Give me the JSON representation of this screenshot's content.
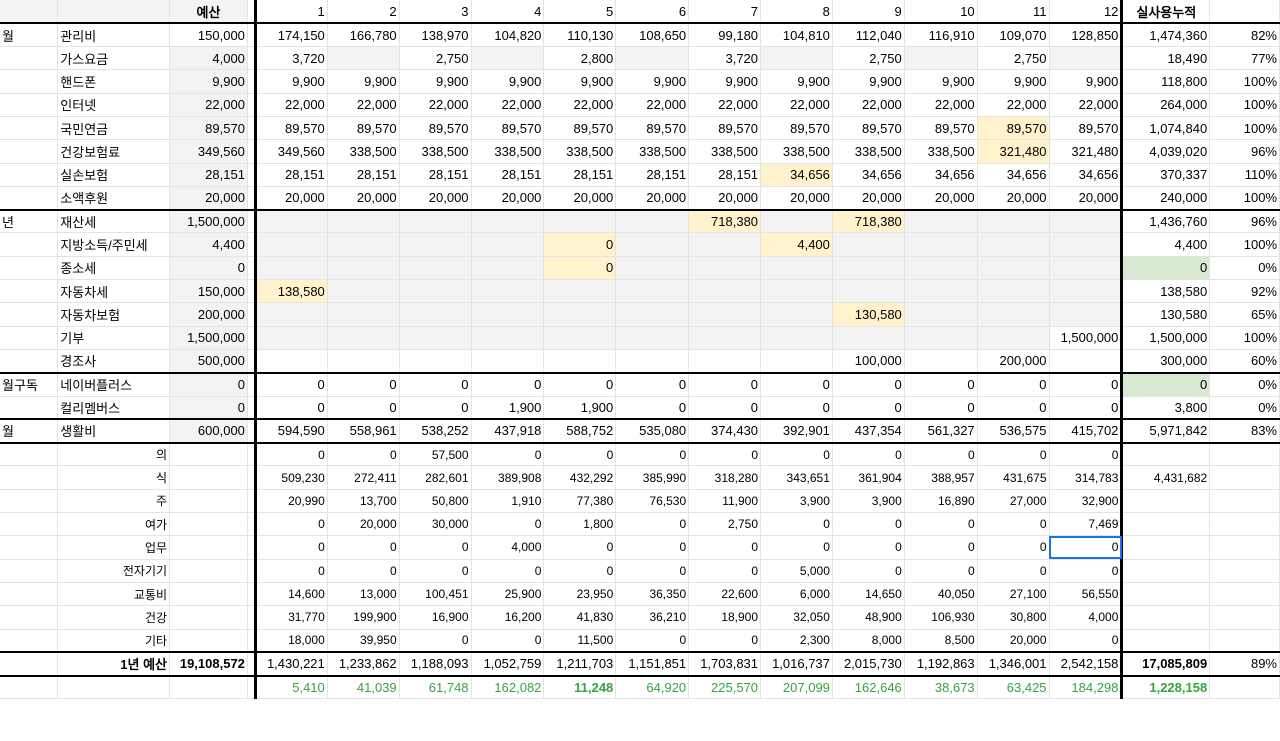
{
  "header": {
    "budget_label": "예산",
    "months": [
      "1",
      "2",
      "3",
      "4",
      "5",
      "6",
      "7",
      "8",
      "9",
      "10",
      "11",
      "12"
    ],
    "cumulative_label": "실사용누적"
  },
  "fixed_rows": [
    {
      "group": "월",
      "item": "관리비",
      "budget": "150,000",
      "m": [
        "174,150",
        "166,780",
        "138,970",
        "104,820",
        "110,130",
        "108,650",
        "99,180",
        "104,810",
        "112,040",
        "116,910",
        "109,070",
        "128,850"
      ],
      "total": "1,474,360",
      "pct": "82%"
    },
    {
      "group": "",
      "item": "가스요금",
      "budget": "4,000",
      "m": [
        "3,720",
        "",
        "2,750",
        "",
        "2,800",
        "",
        "3,720",
        "",
        "2,750",
        "",
        "2,750",
        ""
      ],
      "total": "18,490",
      "pct": "77%"
    },
    {
      "group": "",
      "item": "핸드폰",
      "budget": "9,900",
      "m": [
        "9,900",
        "9,900",
        "9,900",
        "9,900",
        "9,900",
        "9,900",
        "9,900",
        "9,900",
        "9,900",
        "9,900",
        "9,900",
        "9,900"
      ],
      "total": "118,800",
      "pct": "100%"
    },
    {
      "group": "",
      "item": "인터넷",
      "budget": "22,000",
      "m": [
        "22,000",
        "22,000",
        "22,000",
        "22,000",
        "22,000",
        "22,000",
        "22,000",
        "22,000",
        "22,000",
        "22,000",
        "22,000",
        "22,000"
      ],
      "total": "264,000",
      "pct": "100%"
    },
    {
      "group": "",
      "item": "국민연금",
      "budget": "89,570",
      "m": [
        "89,570",
        "89,570",
        "89,570",
        "89,570",
        "89,570",
        "89,570",
        "89,570",
        "89,570",
        "89,570",
        "89,570",
        "89,570",
        "89,570"
      ],
      "total": "1,074,840",
      "pct": "100%"
    },
    {
      "group": "",
      "item": "건강보험료",
      "budget": "349,560",
      "m": [
        "349,560",
        "338,500",
        "338,500",
        "338,500",
        "338,500",
        "338,500",
        "338,500",
        "338,500",
        "338,500",
        "338,500",
        "321,480",
        "321,480"
      ],
      "total": "4,039,020",
      "pct": "96%"
    },
    {
      "group": "",
      "item": "실손보험",
      "budget": "28,151",
      "m": [
        "28,151",
        "28,151",
        "28,151",
        "28,151",
        "28,151",
        "28,151",
        "28,151",
        "34,656",
        "34,656",
        "34,656",
        "34,656",
        "34,656"
      ],
      "total": "370,337",
      "pct": "110%"
    },
    {
      "group": "",
      "item": "소액후원",
      "budget": "20,000",
      "m": [
        "20,000",
        "20,000",
        "20,000",
        "20,000",
        "20,000",
        "20,000",
        "20,000",
        "20,000",
        "20,000",
        "20,000",
        "20,000",
        "20,000"
      ],
      "total": "240,000",
      "pct": "100%"
    },
    {
      "group": "년",
      "item": "재산세",
      "budget": "1,500,000",
      "m": [
        "",
        "",
        "",
        "",
        "",
        "",
        "718,380",
        "",
        "718,380",
        "",
        "",
        ""
      ],
      "total": "1,436,760",
      "pct": "96%"
    },
    {
      "group": "",
      "item": "지방소득/주민세",
      "budget": "4,400",
      "m": [
        "",
        "",
        "",
        "",
        "0",
        "",
        "",
        "4,400",
        "",
        "",
        "",
        ""
      ],
      "total": "4,400",
      "pct": "100%"
    },
    {
      "group": "",
      "item": "종소세",
      "budget": "0",
      "m": [
        "",
        "",
        "",
        "",
        "0",
        "",
        "",
        "",
        "",
        "",
        "",
        ""
      ],
      "total": "0",
      "pct": "0%"
    },
    {
      "group": "",
      "item": "자동차세",
      "budget": "150,000",
      "m": [
        "138,580",
        "",
        "",
        "",
        "",
        "",
        "",
        "",
        "",
        "",
        "",
        ""
      ],
      "total": "138,580",
      "pct": "92%"
    },
    {
      "group": "",
      "item": "자동차보험",
      "budget": "200,000",
      "m": [
        "",
        "",
        "",
        "",
        "",
        "",
        "",
        "",
        "130,580",
        "",
        "",
        ""
      ],
      "total": "130,580",
      "pct": "65%"
    },
    {
      "group": "",
      "item": "기부",
      "budget": "1,500,000",
      "m": [
        "",
        "",
        "",
        "",
        "",
        "",
        "",
        "",
        "",
        "",
        "",
        "1,500,000"
      ],
      "total": "1,500,000",
      "pct": "100%"
    },
    {
      "group": "",
      "item": "경조사",
      "budget": "500,000",
      "m": [
        "",
        "",
        "",
        "",
        "",
        "",
        "",
        "",
        "100,000",
        "",
        "200,000",
        ""
      ],
      "total": "300,000",
      "pct": "60%"
    },
    {
      "group": "월구독",
      "item": "네이버플러스",
      "budget": "0",
      "m": [
        "0",
        "0",
        "0",
        "0",
        "0",
        "0",
        "0",
        "0",
        "0",
        "0",
        "0",
        "0"
      ],
      "total": "0",
      "pct": "0%"
    },
    {
      "group": "",
      "item": "컬리멤버스",
      "budget": "0",
      "m": [
        "0",
        "0",
        "0",
        "1,900",
        "1,900",
        "0",
        "0",
        "0",
        "0",
        "0",
        "0",
        "0"
      ],
      "total": "3,800",
      "pct": "0%"
    },
    {
      "group": "월",
      "item": "생활비",
      "budget": "600,000",
      "m": [
        "594,590",
        "558,961",
        "538,252",
        "437,918",
        "588,752",
        "535,080",
        "374,430",
        "392,901",
        "437,354",
        "561,327",
        "536,575",
        "415,702"
      ],
      "total": "5,971,842",
      "pct": "83%"
    }
  ],
  "living_rows": [
    {
      "item": "의",
      "m": [
        "0",
        "0",
        "57,500",
        "0",
        "0",
        "0",
        "0",
        "0",
        "0",
        "0",
        "0",
        "0"
      ],
      "total": ""
    },
    {
      "item": "식",
      "m": [
        "509,230",
        "272,411",
        "282,601",
        "389,908",
        "432,292",
        "385,990",
        "318,280",
        "343,651",
        "361,904",
        "388,957",
        "431,675",
        "314,783"
      ],
      "total": "4,431,682"
    },
    {
      "item": "주",
      "m": [
        "20,990",
        "13,700",
        "50,800",
        "1,910",
        "77,380",
        "76,530",
        "11,900",
        "3,900",
        "3,900",
        "16,890",
        "27,000",
        "32,900"
      ],
      "total": ""
    },
    {
      "item": "여가",
      "m": [
        "0",
        "20,000",
        "30,000",
        "0",
        "1,800",
        "0",
        "2,750",
        "0",
        "0",
        "0",
        "0",
        "7,469"
      ],
      "total": ""
    },
    {
      "item": "업무",
      "m": [
        "0",
        "0",
        "0",
        "4,000",
        "0",
        "0",
        "0",
        "0",
        "0",
        "0",
        "0",
        "0"
      ],
      "total": ""
    },
    {
      "item": "전자기기",
      "m": [
        "0",
        "0",
        "0",
        "0",
        "0",
        "0",
        "0",
        "5,000",
        "0",
        "0",
        "0",
        "0"
      ],
      "total": ""
    },
    {
      "item": "교통비",
      "m": [
        "14,600",
        "13,000",
        "100,451",
        "25,900",
        "23,950",
        "36,350",
        "22,600",
        "6,000",
        "14,650",
        "40,050",
        "27,100",
        "56,550"
      ],
      "total": ""
    },
    {
      "item": "건강",
      "m": [
        "31,770",
        "199,900",
        "16,900",
        "16,200",
        "41,830",
        "36,210",
        "18,900",
        "32,050",
        "48,900",
        "106,930",
        "30,800",
        "4,000"
      ],
      "total": ""
    },
    {
      "item": "기타",
      "m": [
        "18,000",
        "39,950",
        "0",
        "0",
        "11,500",
        "0",
        "0",
        "2,300",
        "8,000",
        "8,500",
        "20,000",
        "0"
      ],
      "total": ""
    }
  ],
  "summary": {
    "label": "1년 예산",
    "budget": "19,108,572",
    "m": [
      "1,430,221",
      "1,233,862",
      "1,188,093",
      "1,052,759",
      "1,211,703",
      "1,151,851",
      "1,703,831",
      "1,016,737",
      "2,015,730",
      "1,192,863",
      "1,346,001",
      "2,542,158"
    ],
    "total": "17,085,809",
    "pct": "89%"
  },
  "remainder": {
    "m": [
      "5,410",
      "41,039",
      "61,748",
      "162,082",
      "11,248",
      "64,920",
      "225,570",
      "207,099",
      "162,646",
      "38,673",
      "63,425",
      "184,298"
    ],
    "total": "1,228,158"
  },
  "colors": {
    "gray_fill": "#f3f3f3",
    "yellow_fill": "#fff2cc",
    "green_fill": "#d9ead3",
    "green_text": "#38a33e",
    "selection": "#1a73e8"
  }
}
